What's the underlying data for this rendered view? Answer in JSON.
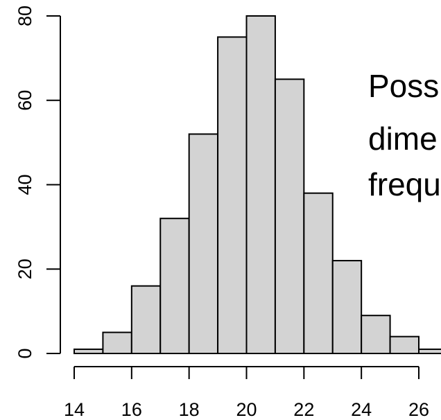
{
  "chart_data": {
    "type": "bar",
    "title": "",
    "xlabel": "",
    "ylabel": "",
    "bins": [
      {
        "start": 14,
        "end": 15,
        "value": 1
      },
      {
        "start": 15,
        "end": 16,
        "value": 5
      },
      {
        "start": 16,
        "end": 17,
        "value": 16
      },
      {
        "start": 17,
        "end": 18,
        "value": 32
      },
      {
        "start": 18,
        "end": 19,
        "value": 52
      },
      {
        "start": 19,
        "end": 20,
        "value": 75
      },
      {
        "start": 20,
        "end": 21,
        "value": 80
      },
      {
        "start": 21,
        "end": 22,
        "value": 65
      },
      {
        "start": 22,
        "end": 23,
        "value": 38
      },
      {
        "start": 23,
        "end": 24,
        "value": 22
      },
      {
        "start": 24,
        "end": 25,
        "value": 9
      },
      {
        "start": 25,
        "end": 26,
        "value": 4
      },
      {
        "start": 26,
        "end": 27,
        "value": 1
      }
    ],
    "x_ticks": [
      14,
      16,
      18,
      20,
      22,
      24,
      26
    ],
    "y_ticks": [
      0,
      20,
      40,
      60,
      80
    ],
    "xlim": [
      14,
      26
    ],
    "ylim": [
      0,
      80
    ],
    "bar_fill": "#d3d3d3",
    "bar_stroke": "#000000",
    "grid": false,
    "legend": "none"
  },
  "overlay_text": [
    "Poss",
    "dime",
    "frequ"
  ]
}
